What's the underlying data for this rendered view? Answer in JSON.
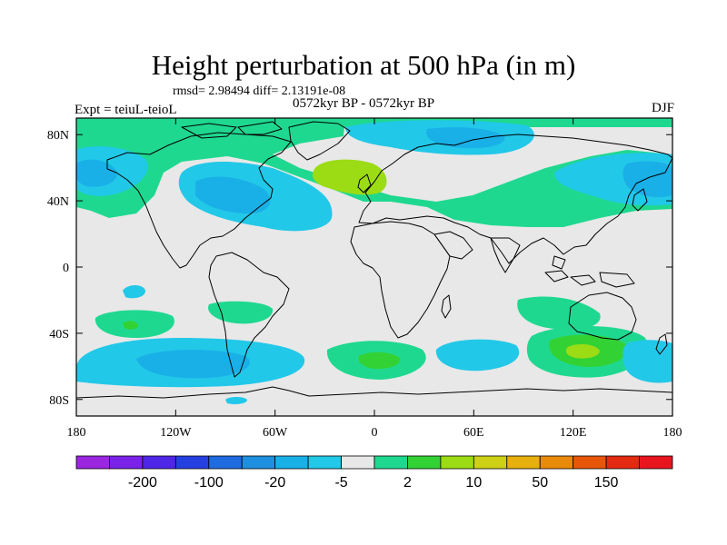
{
  "title": "Height perturbation at 500 hPa (in m)",
  "stats": "rmsd= 2.98494 diff= 2.13191e-08",
  "subtitle": "0572kyr BP - 0572kyr BP",
  "left_label": "Expt = teiuL-teioL",
  "right_label": "DJF",
  "map": {
    "lon_range": [
      -180,
      180
    ],
    "lat_range": [
      -90,
      90
    ],
    "lat_ticks": [
      {
        "value": 80,
        "label": "80N"
      },
      {
        "value": 40,
        "label": "40N"
      },
      {
        "value": 0,
        "label": "0"
      },
      {
        "value": -40,
        "label": "40S"
      },
      {
        "value": -80,
        "label": "80S"
      }
    ],
    "lon_ticks": [
      {
        "value": -180,
        "label": "180"
      },
      {
        "value": -120,
        "label": "120W"
      },
      {
        "value": -60,
        "label": "60W"
      },
      {
        "value": 0,
        "label": "0"
      },
      {
        "value": 60,
        "label": "60E"
      },
      {
        "value": 120,
        "label": "120E"
      },
      {
        "value": 180,
        "label": "180"
      }
    ],
    "background_color": "#e8e8e8",
    "coastline_color": "#000000"
  },
  "colorbar": {
    "colors": [
      "#9a26e0",
      "#7a22e8",
      "#4f25e8",
      "#2540e0",
      "#1f6be0",
      "#1f8fe0",
      "#19b0e8",
      "#22c8e8",
      "#e8e8e8",
      "#1fd890",
      "#32d235",
      "#9bdc14",
      "#cdd014",
      "#e6b00e",
      "#e88a0a",
      "#e8560a",
      "#e42a10",
      "#e8141e"
    ],
    "tick_labels": [
      {
        "after_index": 1,
        "label": "-200"
      },
      {
        "after_index": 3,
        "label": "-100"
      },
      {
        "after_index": 5,
        "label": "-20"
      },
      {
        "after_index": 7,
        "label": "-5"
      },
      {
        "after_index": 9,
        "label": "2"
      },
      {
        "after_index": 11,
        "label": "10"
      },
      {
        "after_index": 13,
        "label": "50"
      },
      {
        "after_index": 15,
        "label": "150"
      }
    ]
  }
}
